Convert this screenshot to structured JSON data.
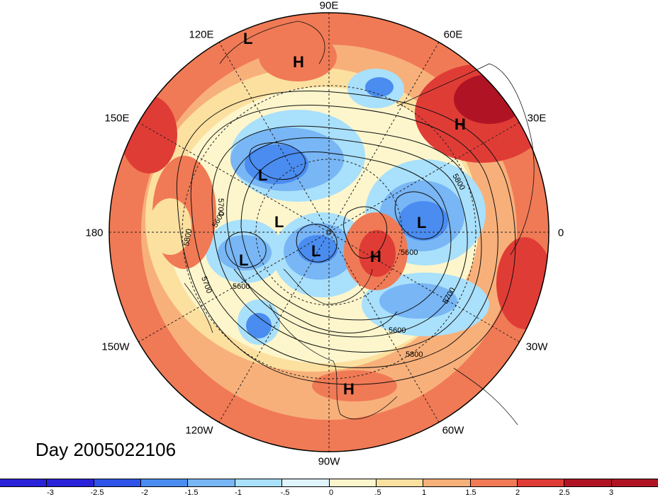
{
  "map": {
    "longitude_labels": [
      {
        "text": "90E",
        "deg": 90
      },
      {
        "text": "60E",
        "deg": 60
      },
      {
        "text": "30E",
        "deg": 30
      },
      {
        "text": "0",
        "deg": 0
      },
      {
        "text": "30W",
        "deg": -30
      },
      {
        "text": "60W",
        "deg": -60
      },
      {
        "text": "90W",
        "deg": -90
      },
      {
        "text": "120W",
        "deg": -120
      },
      {
        "text": "150W",
        "deg": -150
      },
      {
        "text": "180",
        "deg": 180
      },
      {
        "text": "150E",
        "deg": 150
      },
      {
        "text": "120E",
        "deg": 120
      }
    ],
    "contour_labels": [
      "5800",
      "5700",
      "5600",
      "5600",
      "5700",
      "5600",
      "5800",
      "5800",
      "5700",
      "5600"
    ],
    "pressure_markers": [
      "L",
      "H",
      "H",
      "L",
      "L",
      "L",
      "L",
      "H",
      "L",
      "H"
    ]
  },
  "caption": {
    "text": "Day 2005022106"
  },
  "colorbar": {
    "colors": [
      "#2a22d8",
      "#2f53e8",
      "#4a8cf0",
      "#78b6f5",
      "#a9e0fb",
      "#dff4fd",
      "#fdf6cc",
      "#fce0a0",
      "#f8b07a",
      "#f07a55",
      "#e03c36",
      "#b01424"
    ],
    "tick_labels": [
      "-3",
      "-2.5",
      "-2",
      "-1.5",
      "-1",
      "-.5",
      "0",
      ".5",
      "1",
      "1.5",
      "2",
      "2.5",
      "3"
    ]
  }
}
